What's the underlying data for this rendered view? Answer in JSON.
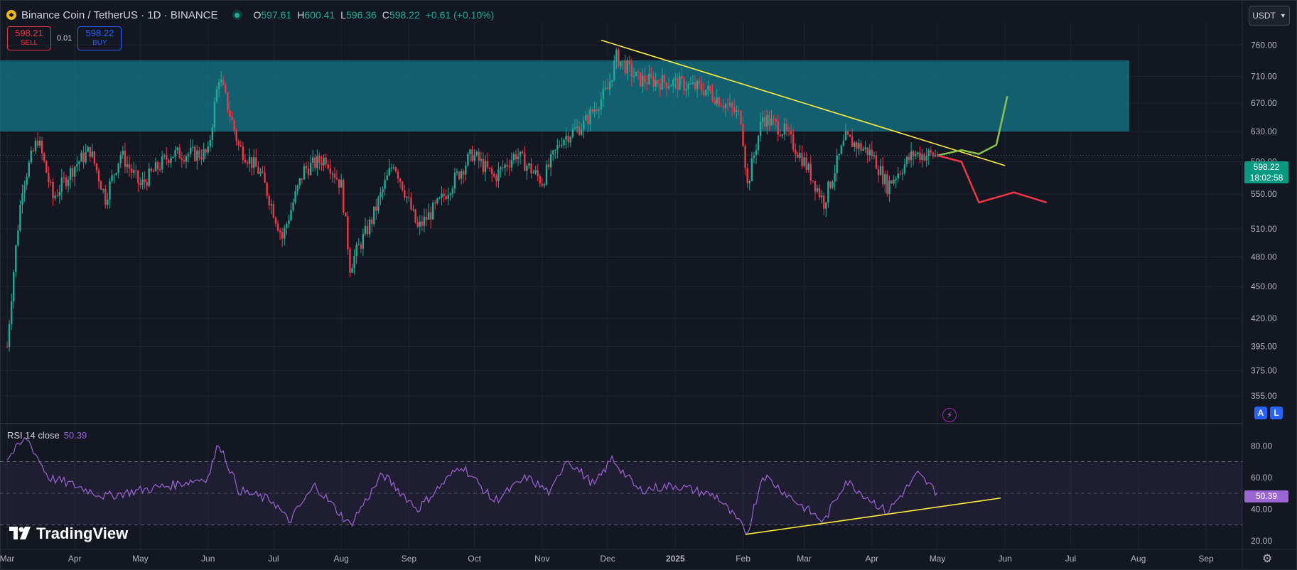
{
  "header": {
    "title": "Binance Coin / TetherUS · 1D · BINANCE",
    "open_label": "O",
    "open_value": "597.61",
    "high_label": "H",
    "high_value": "600.41",
    "low_label": "L",
    "low_value": "596.36",
    "close_label": "C",
    "close_value": "598.22",
    "change": "+0.61 (+0.10%)"
  },
  "trade": {
    "sell_price": "598.21",
    "sell_label": "SELL",
    "spread": "0.01",
    "buy_price": "598.22",
    "buy_label": "BUY"
  },
  "currency_select": "USDT",
  "last_price": {
    "price": "598.22",
    "countdown": "18:02:58"
  },
  "rsi": {
    "label": "RSI 14 close",
    "value": "50.39"
  },
  "buttons": {
    "a": "A",
    "l": "L"
  },
  "brand": {
    "name": "TradingView"
  },
  "colors": {
    "background": "#131722",
    "up": "#22ab94",
    "down": "#f23645",
    "zone": "#127b8f",
    "trendline": "#ffeb3b",
    "bull_path": "#8bc34a",
    "bear_path": "#f23645",
    "rsi_line": "#9c65d4"
  },
  "chart_data": [
    {
      "type": "candlestick",
      "title": "Binance Coin / TetherUS · 1D · BINANCE",
      "x_tick_labels": [
        "Mar",
        "Apr",
        "May",
        "Jun",
        "Jul",
        "Aug",
        "Sep",
        "Oct",
        "Nov",
        "Dec",
        "2025",
        "Feb",
        "Mar",
        "Apr",
        "May",
        "Jun",
        "Jul",
        "Aug",
        "Sep"
      ],
      "y_tick_labels": [
        "355.00",
        "375.00",
        "395.00",
        "420.00",
        "450.00",
        "480.00",
        "510.00",
        "550.00",
        "590.00",
        "630.00",
        "670.00",
        "710.00",
        "760.00"
      ],
      "y_scale": "log",
      "ylim": [
        340,
        800
      ],
      "grid": true,
      "price_path": [
        [
          "2024-03-01",
          395
        ],
        [
          "2024-03-08",
          560
        ],
        [
          "2024-03-15",
          620
        ],
        [
          "2024-03-22",
          545
        ],
        [
          "2024-04-01",
          585
        ],
        [
          "2024-04-08",
          605
        ],
        [
          "2024-04-15",
          545
        ],
        [
          "2024-04-22",
          600
        ],
        [
          "2024-05-01",
          560
        ],
        [
          "2024-05-15",
          600
        ],
        [
          "2024-06-01",
          600
        ],
        [
          "2024-06-06",
          710
        ],
        [
          "2024-06-15",
          610
        ],
        [
          "2024-06-25",
          575
        ],
        [
          "2024-07-05",
          500
        ],
        [
          "2024-07-15",
          580
        ],
        [
          "2024-07-25",
          595
        ],
        [
          "2024-08-01",
          560
        ],
        [
          "2024-08-05",
          470
        ],
        [
          "2024-08-15",
          520
        ],
        [
          "2024-08-25",
          590
        ],
        [
          "2024-09-05",
          510
        ],
        [
          "2024-09-15",
          540
        ],
        [
          "2024-09-30",
          600
        ],
        [
          "2024-10-10",
          570
        ],
        [
          "2024-10-20",
          600
        ],
        [
          "2024-11-01",
          565
        ],
        [
          "2024-11-10",
          620
        ],
        [
          "2024-11-20",
          640
        ],
        [
          "2024-12-01",
          690
        ],
        [
          "2024-12-05",
          740
        ],
        [
          "2024-12-15",
          705
        ],
        [
          "2025-01-01",
          700
        ],
        [
          "2025-01-15",
          690
        ],
        [
          "2025-01-31",
          650
        ],
        [
          "2025-02-03",
          560
        ],
        [
          "2025-02-10",
          650
        ],
        [
          "2025-02-20",
          630
        ],
        [
          "2025-03-01",
          590
        ],
        [
          "2025-03-10",
          540
        ],
        [
          "2025-03-20",
          620
        ],
        [
          "2025-04-01",
          600
        ],
        [
          "2025-04-08",
          560
        ],
        [
          "2025-04-20",
          600
        ],
        [
          "2025-05-01",
          598.22
        ]
      ],
      "zones": [
        {
          "from": 630,
          "to": 735
        }
      ],
      "trendlines": [
        {
          "from": [
            "2024-11-28",
            768
          ],
          "to": [
            "2025-06-01",
            585
          ]
        }
      ],
      "projections": [
        {
          "name": "bullish",
          "points": [
            [
              "2025-05-01",
              598
            ],
            [
              "2025-05-12",
              605
            ],
            [
              "2025-05-20",
              600
            ],
            [
              "2025-05-28",
              612
            ],
            [
              "2025-06-02",
              680
            ]
          ]
        },
        {
          "name": "bearish",
          "points": [
            [
              "2025-05-01",
              598
            ],
            [
              "2025-05-12",
              590
            ],
            [
              "2025-05-20",
              540
            ],
            [
              "2025-06-05",
              552
            ],
            [
              "2025-06-20",
              540
            ]
          ]
        }
      ],
      "last_price": 598.22
    },
    {
      "type": "line",
      "title": "RSI 14 close",
      "y_tick_labels": [
        "20.00",
        "40.00",
        "60.00",
        "80.00"
      ],
      "ylim": [
        15,
        90
      ],
      "bands": [
        30,
        50,
        70
      ],
      "series": [
        {
          "name": "RSI 14 close",
          "points": [
            [
              "2024-03-01",
              72
            ],
            [
              "2024-03-10",
              85
            ],
            [
              "2024-03-20",
              60
            ],
            [
              "2024-04-01",
              55
            ],
            [
              "2024-04-15",
              48
            ],
            [
              "2024-05-01",
              52
            ],
            [
              "2024-05-15",
              55
            ],
            [
              "2024-06-01",
              60
            ],
            [
              "2024-06-06",
              82
            ],
            [
              "2024-06-15",
              52
            ],
            [
              "2024-07-01",
              45
            ],
            [
              "2024-07-08",
              32
            ],
            [
              "2024-07-20",
              55
            ],
            [
              "2024-08-05",
              30
            ],
            [
              "2024-08-20",
              62
            ],
            [
              "2024-09-05",
              40
            ],
            [
              "2024-09-25",
              68
            ],
            [
              "2024-10-10",
              45
            ],
            [
              "2024-10-25",
              60
            ],
            [
              "2024-11-05",
              50
            ],
            [
              "2024-11-12",
              72
            ],
            [
              "2024-11-25",
              55
            ],
            [
              "2024-12-03",
              72
            ],
            [
              "2024-12-15",
              52
            ],
            [
              "2025-01-01",
              55
            ],
            [
              "2025-01-20",
              48
            ],
            [
              "2025-02-03",
              25
            ],
            [
              "2025-02-10",
              62
            ],
            [
              "2025-02-25",
              45
            ],
            [
              "2025-03-10",
              32
            ],
            [
              "2025-03-20",
              58
            ],
            [
              "2025-04-08",
              38
            ],
            [
              "2025-04-22",
              62
            ],
            [
              "2025-05-01",
              50.39
            ]
          ]
        }
      ],
      "trendlines": [
        {
          "from": [
            "2025-02-02",
            24
          ],
          "to": [
            "2025-05-30",
            47
          ]
        }
      ],
      "last_value": 50.39
    }
  ]
}
